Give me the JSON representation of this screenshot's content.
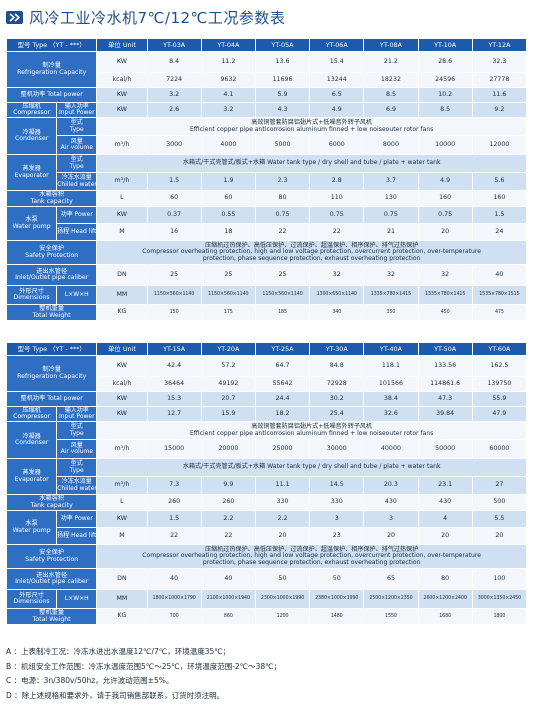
{
  "title": "风冷工业冷水机7℃/12℃工况参数表",
  "labels": {
    "model": "型号 Type （YT - ***）",
    "unit": "单位 Unit",
    "cooling_cn": "制冷量",
    "cooling_en": "Refrigeration Capacity",
    "power": "整机功率 Total power",
    "compressor_cn": "压缩机",
    "compressor_en": "Compressor",
    "input_power_cn": "输入功率",
    "input_power_en": "Input Power",
    "condenser_cn": "冷凝器",
    "condenser_en": "Condenser",
    "type_cn": "型式",
    "type_en": "Type",
    "air_cn": "风量",
    "air_en": "Air volume",
    "evaporator_cn": "蒸发器",
    "evaporator_en": "Evaporator",
    "chilled_cn": "冷冻水流量",
    "chilled_en": "Chilled water flow",
    "tank_cn": "水箱容积",
    "tank_en": "Tank capacity",
    "pump_cn": "水泵",
    "pump_en": "Water pump",
    "pump_power": "功率 Power",
    "head_lift": "扬程 Head lift",
    "safety_cn": "安全保护",
    "safety_en": "Safety Protection",
    "pipe_cn": "进出水管径",
    "pipe_en": "Inlet/Outlet pipe caliber",
    "dim_cn": "外形尺寸",
    "dim_en": "Dimensions",
    "dim_unit": "L×W×H",
    "weight_cn": "整机重量",
    "weight_en": "Total Weight"
  },
  "units": {
    "kw": "KW",
    "kcal": "kcal/h",
    "m3h": "m³/h",
    "l": "L",
    "m": "M",
    "dn": "DN",
    "mm": "MM",
    "kg": "KG"
  },
  "shared": {
    "condenser_type_cn": "高效铜管套防腐铝翅片式+低噪音外转子风机",
    "condenser_type_en": "Efficient copper pipe anticorrosion aluminum finned + low noiseouter rotor fans",
    "evaporator_type": "水箱式/干式壳管式/板式+水箱   Water tank type / dry shell and tube / plate + water tank",
    "safety_cn": "压缩机过热保护、高低压保护、过流保护、超温保护、相序保护、排气过热保护",
    "safety_en1": "Compressor overheating protection, high and low voltage protection, overcurrent protection, over-temperature",
    "safety_en2": "protection, phase sequence protection, exhaust overheating protection"
  },
  "table1": {
    "models": [
      "YT-03A",
      "YT-04A",
      "YT-05A",
      "YT-06A",
      "YT-08A",
      "YT-10A",
      "YT-12A"
    ],
    "cooling_kw": [
      "8.4",
      "11.2",
      "13.6",
      "15.4",
      "21.2",
      "28.6",
      "32.3"
    ],
    "cooling_kcal": [
      "7224",
      "9632",
      "11696",
      "13244",
      "18232",
      "24596",
      "27778"
    ],
    "total_power": [
      "3.2",
      "4.1",
      "5.9",
      "6.5",
      "8.5",
      "10.2",
      "11.6"
    ],
    "input_power": [
      "2.6",
      "3.2",
      "4.3",
      "4.9",
      "6.9",
      "8.5",
      "9.2"
    ],
    "air_volume": [
      "3000",
      "4000",
      "5000",
      "6000",
      "8000",
      "10000",
      "12000"
    ],
    "chilled_flow": [
      "1.5",
      "1.9",
      "2.3",
      "2.8",
      "3.7",
      "4.9",
      "5.6"
    ],
    "tank": [
      "60",
      "60",
      "80",
      "110",
      "130",
      "160",
      "160"
    ],
    "pump_power": [
      "0.37",
      "0.55",
      "0.75",
      "0.75",
      "0.75",
      "0.75",
      "1.5"
    ],
    "head_lift": [
      "16",
      "18",
      "22",
      "22",
      "21",
      "20",
      "24"
    ],
    "pipe": [
      "25",
      "25",
      "25",
      "32",
      "32",
      "32",
      "40"
    ],
    "dims": [
      "1150×560×1140",
      "1150×560×1140",
      "1150×560×1140",
      "1300×650×1140",
      "1335×780×1415",
      "1335×780×1415",
      "1535×780×1515"
    ],
    "weight": [
      "150",
      "175",
      "185",
      "340",
      "350",
      "450",
      "475"
    ]
  },
  "table2": {
    "models": [
      "YT-15A",
      "YT-20A",
      "YT-25A",
      "YT-30A",
      "YT-40A",
      "YT-50A",
      "YT-60A"
    ],
    "cooling_kw": [
      "42.4",
      "57.2",
      "64.7",
      "84.8",
      "118.1",
      "133.56",
      "162.5"
    ],
    "cooling_kcal": [
      "36464",
      "49192",
      "55642",
      "72928",
      "101566",
      "114861.6",
      "139750"
    ],
    "total_power": [
      "15.3",
      "20.7",
      "24.4",
      "30.2",
      "38.4",
      "47.3",
      "55.9"
    ],
    "input_power": [
      "12.7",
      "15.9",
      "18.2",
      "25.4",
      "32.6",
      "39.84",
      "47.9"
    ],
    "air_volume": [
      "15000",
      "20000",
      "25000",
      "30000",
      "40000",
      "50000",
      "60000"
    ],
    "chilled_flow": [
      "7.3",
      "9.9",
      "11.1",
      "14.5",
      "20.3",
      "23.1",
      "27"
    ],
    "tank": [
      "260",
      "260",
      "330",
      "330",
      "430",
      "430",
      "500"
    ],
    "pump_power": [
      "1.5",
      "2.2",
      "2.2",
      "3",
      "3",
      "4",
      "5.5"
    ],
    "head_lift": [
      "22",
      "22",
      "20",
      "23",
      "20",
      "20",
      "20"
    ],
    "pipe": [
      "40",
      "40",
      "50",
      "50",
      "65",
      "80",
      "100"
    ],
    "dims": [
      "1800×1000×1790",
      "2100×1000×1940",
      "2300×1000×1990",
      "2380×1000×1990",
      "2500×1200×2350",
      "2600×1200×2400",
      "3000×1350×2450"
    ],
    "weight": [
      "700",
      "860",
      "1200",
      "1480",
      "1550",
      "1680",
      "1800"
    ]
  },
  "notes": [
    "A ：上表制冷工况：冷冻水进出水温度12℃/7℃，环境温度35℃；",
    "B ：机组安全工作范围：冷冻水温度范围5℃～25℃，环境温度范围-2℃～38℃；",
    "C ：电源：3n/380v/50hz，允许波动范围±5%。",
    "D ：除上述规格和要求外，请于我司销售部联系，订货时须注明。"
  ],
  "colors": {
    "title": "#1f4f8f",
    "label_bg": "#2e6fc4",
    "header_bg": "#1d5aab",
    "row_light": "#f3f7fc",
    "row_dark": "#cfe0f3"
  },
  "icons": {
    "title": "double-chevron-right-icon"
  }
}
